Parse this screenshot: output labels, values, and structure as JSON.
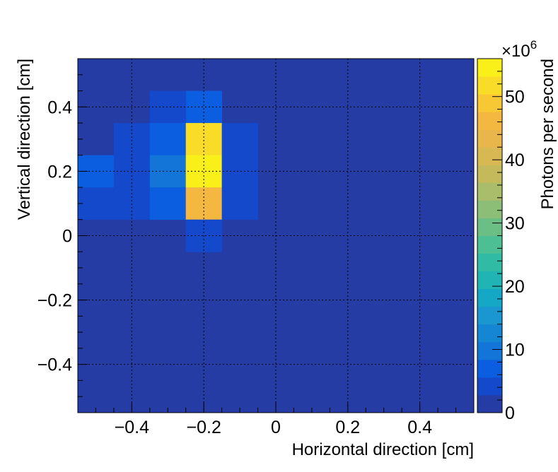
{
  "chart_data": {
    "type": "heatmap",
    "xlabel": "Horizontal direction [cm]",
    "ylabel": "Vertical direction [cm]",
    "zlabel": "Photons per second",
    "z_multiplier_label": "×10",
    "z_multiplier_exponent": "6",
    "xlim": [
      -0.55,
      0.55
    ],
    "ylim": [
      -0.55,
      0.55
    ],
    "zlim": [
      0,
      56
    ],
    "x_ticks": [
      -0.4,
      -0.2,
      0,
      0.2,
      0.4
    ],
    "x_tick_labels": [
      "−0.4",
      "−0.2",
      "0",
      "0.2",
      "0.4"
    ],
    "y_ticks": [
      -0.4,
      -0.2,
      0,
      0.2,
      0.4
    ],
    "y_tick_labels": [
      "−0.4",
      "−0.2",
      "0",
      "0.2",
      "0.4"
    ],
    "z_ticks": [
      0,
      10,
      20,
      30,
      40,
      50
    ],
    "z_tick_labels": [
      "0",
      "10",
      "20",
      "30",
      "40",
      "50"
    ],
    "grid": true,
    "bin_width": 0.1,
    "background_value": 0,
    "palette": [
      "#263ca5",
      "#1449cc",
      "#0c5ee0",
      "#1475d8",
      "#1486d4",
      "#1a97d0",
      "#14a8c6",
      "#20b4b4",
      "#30bca4",
      "#4cbf94",
      "#6cbf84",
      "#8cbe78",
      "#aabd6a",
      "#c4ba5c",
      "#d8b852",
      "#e8b64a",
      "#f4b840",
      "#f8c834",
      "#f8dc28",
      "#f8f018"
    ],
    "cells": [
      {
        "x": -0.2,
        "y": 0.4,
        "value": 6
      },
      {
        "x": -0.3,
        "y": 0.4,
        "value": 3
      },
      {
        "x": -0.4,
        "y": 0.3,
        "value": 3
      },
      {
        "x": -0.3,
        "y": 0.3,
        "value": 8
      },
      {
        "x": -0.2,
        "y": 0.3,
        "value": 53
      },
      {
        "x": -0.1,
        "y": 0.3,
        "value": 3
      },
      {
        "x": -0.5,
        "y": 0.2,
        "value": 6
      },
      {
        "x": -0.4,
        "y": 0.2,
        "value": 5
      },
      {
        "x": -0.3,
        "y": 0.2,
        "value": 11
      },
      {
        "x": -0.2,
        "y": 0.2,
        "value": 56
      },
      {
        "x": -0.1,
        "y": 0.2,
        "value": 3
      },
      {
        "x": -0.5,
        "y": 0.1,
        "value": 3
      },
      {
        "x": -0.4,
        "y": 0.1,
        "value": 3
      },
      {
        "x": -0.3,
        "y": 0.1,
        "value": 7
      },
      {
        "x": -0.2,
        "y": 0.1,
        "value": 46
      },
      {
        "x": -0.1,
        "y": 0.1,
        "value": 3
      },
      {
        "x": -0.2,
        "y": 0.0,
        "value": 3
      }
    ]
  }
}
